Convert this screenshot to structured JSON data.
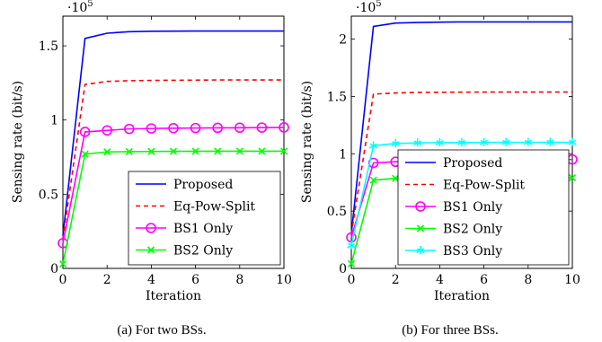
{
  "chart_data": [
    {
      "type": "line",
      "caption": "(a) For two BSs.",
      "xlabel": "Iteration",
      "ylabel": "Sensing rate (bit/s)",
      "y_multiplier": "·10",
      "y_multiplier_exp": "5",
      "xlim": [
        0,
        10
      ],
      "ylim": [
        0,
        1.7
      ],
      "xticks": [
        0,
        2,
        4,
        6,
        8,
        10
      ],
      "yticks": [
        0,
        0.5,
        1,
        1.5
      ],
      "ytick_labels": [
        "0",
        "0.5",
        "1",
        "1.5"
      ],
      "legend_position": "bottom-right",
      "x": [
        0,
        1,
        2,
        3,
        4,
        5,
        6,
        7,
        8,
        9,
        10
      ],
      "series": [
        {
          "name": "Proposed",
          "color": "#0000ff",
          "dash": "solid",
          "marker": "none",
          "values": [
            0.22,
            1.55,
            1.585,
            1.595,
            1.598,
            1.599,
            1.6,
            1.6,
            1.6,
            1.6,
            1.6
          ]
        },
        {
          "name": "Eq-Pow-Split",
          "color": "#ff0000",
          "dash": "dashed",
          "marker": "none",
          "values": [
            0.2,
            1.24,
            1.26,
            1.265,
            1.267,
            1.268,
            1.269,
            1.27,
            1.27,
            1.27,
            1.27
          ]
        },
        {
          "name": "BS1 Only",
          "color": "#ff00ff",
          "dash": "solid",
          "marker": "circle",
          "values": [
            0.17,
            0.92,
            0.93,
            0.94,
            0.943,
            0.945,
            0.946,
            0.947,
            0.948,
            0.949,
            0.95
          ]
        },
        {
          "name": "BS2 Only",
          "color": "#00ff00",
          "dash": "solid",
          "marker": "x",
          "values": [
            0.03,
            0.77,
            0.785,
            0.787,
            0.788,
            0.789,
            0.789,
            0.79,
            0.79,
            0.79,
            0.79
          ]
        }
      ]
    },
    {
      "type": "line",
      "caption": "(b) For three BSs.",
      "xlabel": "Iteration",
      "ylabel": "Sensing rate (bit/s)",
      "y_multiplier": "·10",
      "y_multiplier_exp": "5",
      "xlim": [
        0,
        10
      ],
      "ylim": [
        0,
        2.2
      ],
      "xticks": [
        0,
        2,
        4,
        6,
        8,
        10
      ],
      "yticks": [
        0,
        0.5,
        1,
        1.5,
        2
      ],
      "ytick_labels": [
        "0",
        "0.5",
        "1",
        "1.5",
        "2"
      ],
      "legend_position": "bottom-right",
      "x": [
        0,
        1,
        2,
        3,
        4,
        5,
        6,
        7,
        8,
        9,
        10
      ],
      "series": [
        {
          "name": "Proposed",
          "color": "#0000ff",
          "dash": "solid",
          "marker": "none",
          "values": [
            0.3,
            2.11,
            2.14,
            2.145,
            2.148,
            2.15,
            2.15,
            2.15,
            2.15,
            2.15,
            2.15
          ]
        },
        {
          "name": "Eq-Pow-Split",
          "color": "#ff0000",
          "dash": "dashed",
          "marker": "none",
          "values": [
            0.3,
            1.52,
            1.53,
            1.535,
            1.536,
            1.537,
            1.538,
            1.538,
            1.538,
            1.538,
            1.538
          ]
        },
        {
          "name": "BS1 Only",
          "color": "#ff00ff",
          "dash": "solid",
          "marker": "circle",
          "values": [
            0.27,
            0.92,
            0.93,
            0.935,
            0.94,
            0.942,
            0.944,
            0.946,
            0.947,
            0.948,
            0.95
          ]
        },
        {
          "name": "BS2 Only",
          "color": "#00ff00",
          "dash": "solid",
          "marker": "x",
          "values": [
            0.04,
            0.77,
            0.785,
            0.787,
            0.788,
            0.789,
            0.789,
            0.79,
            0.79,
            0.79,
            0.79
          ]
        },
        {
          "name": "BS3 Only",
          "color": "#00ffff",
          "dash": "solid",
          "marker": "star",
          "values": [
            0.2,
            1.07,
            1.09,
            1.095,
            1.097,
            1.098,
            1.099,
            1.1,
            1.1,
            1.1,
            1.1
          ]
        }
      ]
    }
  ]
}
